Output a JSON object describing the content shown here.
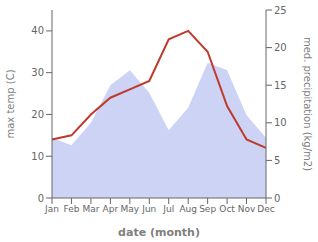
{
  "chart_data": {
    "type": "line",
    "categories": [
      "Jan",
      "Feb",
      "Mar",
      "Apr",
      "May",
      "Jun",
      "Jul",
      "Aug",
      "Sep",
      "Oct",
      "Nov",
      "Dec"
    ],
    "x_label": "date (month)",
    "y_label": "max temp (C)",
    "y2_label": "med. precipitation (kg/m2)",
    "ylim": [
      0,
      45
    ],
    "yticks": [
      0,
      10,
      20,
      30,
      40
    ],
    "y2lim": [
      0,
      25
    ],
    "y2ticks": [
      0,
      5,
      10,
      15,
      20,
      25
    ],
    "grid": false,
    "series": [
      {
        "type": "area",
        "axis": "y2",
        "color": "#b0bcee",
        "values": [
          8,
          7,
          10,
          15,
          17,
          14,
          9,
          12,
          18,
          17,
          11,
          8
        ]
      },
      {
        "type": "line",
        "color": "#c0392b",
        "values": [
          14,
          15,
          20,
          24,
          26,
          28,
          38,
          40,
          35,
          22,
          14,
          12
        ]
      }
    ]
  }
}
